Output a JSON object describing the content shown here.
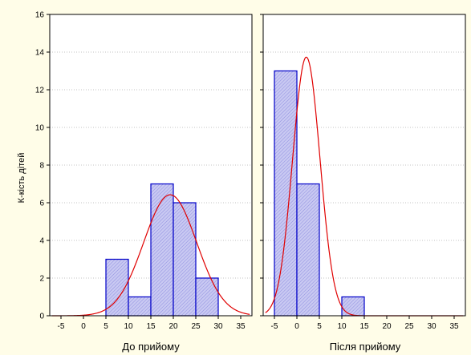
{
  "chart_data": [
    {
      "type": "bar",
      "subtype": "histogram-with-normal-fit",
      "xlabel": "До прийому",
      "ylabel": "К-кість дітей",
      "xlim": [
        -7.5,
        37.5
      ],
      "ylim": [
        0,
        16
      ],
      "xticks": [
        -5,
        0,
        5,
        10,
        15,
        20,
        25,
        30,
        35
      ],
      "yticks": [
        0,
        2,
        4,
        6,
        8,
        10,
        12,
        14,
        16
      ],
      "bins": [
        {
          "from": 5,
          "to": 10,
          "count": 3
        },
        {
          "from": 10,
          "to": 15,
          "count": 1
        },
        {
          "from": 15,
          "to": 20,
          "count": 7
        },
        {
          "from": 20,
          "to": 25,
          "count": 6
        },
        {
          "from": 25,
          "to": 30,
          "count": 2
        }
      ],
      "normal_curve": {
        "mean": 19.3,
        "sd": 5.9,
        "n": 19,
        "bin_width": 5
      },
      "grid": true
    },
    {
      "type": "bar",
      "subtype": "histogram-with-normal-fit",
      "xlabel": "Після прийому",
      "ylabel": "К-кість дітей",
      "xlim": [
        -7.5,
        37.5
      ],
      "ylim": [
        0,
        16
      ],
      "xticks": [
        -5,
        0,
        5,
        10,
        15,
        20,
        25,
        30,
        35
      ],
      "yticks": [
        0,
        2,
        4,
        6,
        8,
        10,
        12,
        14,
        16
      ],
      "bins": [
        {
          "from": -5,
          "to": 0,
          "count": 13
        },
        {
          "from": 0,
          "to": 5,
          "count": 7
        },
        {
          "from": 10,
          "to": 15,
          "count": 1
        }
      ],
      "normal_curve": {
        "mean": 2.1,
        "sd": 3.05,
        "n": 21,
        "bin_width": 5
      },
      "grid": true
    }
  ],
  "colors": {
    "background": "#fffde8",
    "plot_area": "#ffffff",
    "bar_fill": "#c9c9f2",
    "bar_hatch": "#8f8fe0",
    "bar_stroke": "#0000c8",
    "curve": "#e00000",
    "grid": "#888888",
    "axis": "#000000"
  }
}
